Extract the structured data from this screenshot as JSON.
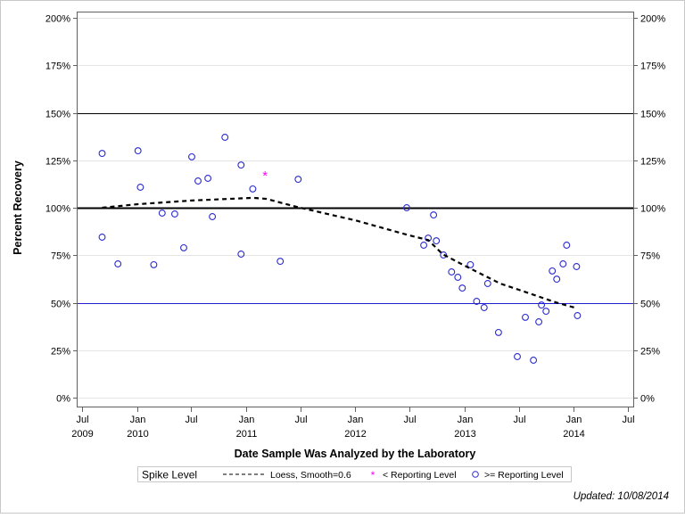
{
  "chart_data": {
    "type": "scatter",
    "xlabel": "Date Sample Was Analyzed by the Laboratory",
    "ylabel": "Percent Recovery",
    "ylim": [
      0,
      200
    ],
    "xlim": [
      "2009-07-01",
      "2014-07-01"
    ],
    "grid": true,
    "y_ticks": [
      "0%",
      "25%",
      "50%",
      "75%",
      "100%",
      "125%",
      "150%",
      "175%",
      "200%"
    ],
    "x_ticks": [
      {
        "date": "2009-07-01",
        "line1": "Jul",
        "line2": "2009"
      },
      {
        "date": "2010-01-01",
        "line1": "Jan",
        "line2": "2010"
      },
      {
        "date": "2010-07-01",
        "line1": "Jul",
        "line2": ""
      },
      {
        "date": "2011-01-01",
        "line1": "Jan",
        "line2": "2011"
      },
      {
        "date": "2011-07-01",
        "line1": "Jul",
        "line2": ""
      },
      {
        "date": "2012-01-01",
        "line1": "Jan",
        "line2": "2012"
      },
      {
        "date": "2012-07-01",
        "line1": "Jul",
        "line2": ""
      },
      {
        "date": "2013-01-01",
        "line1": "Jan",
        "line2": "2013"
      },
      {
        "date": "2013-07-01",
        "line1": "Jul",
        "line2": ""
      },
      {
        "date": "2014-01-01",
        "line1": "Jan",
        "line2": "2014"
      },
      {
        "date": "2014-07-01",
        "line1": "Jul",
        "line2": ""
      }
    ],
    "reference_lines": [
      {
        "value": 150,
        "color": "#000000",
        "style": "thin"
      },
      {
        "value": 100,
        "color": "#000000",
        "style": "thick"
      },
      {
        "value": 50,
        "color": "#2020d0",
        "style": "thin"
      }
    ],
    "series": [
      {
        "name": ">= Reporting Level",
        "marker": "circle",
        "color": "#2a2ad0",
        "points": [
          [
            "2009-09-06",
            128.6
          ],
          [
            "2009-09-06",
            84.5
          ],
          [
            "2009-10-29",
            70.4
          ],
          [
            "2010-01-04",
            130.0
          ],
          [
            "2010-01-12",
            110.8
          ],
          [
            "2010-02-26",
            70.0
          ],
          [
            "2010-03-26",
            97.2
          ],
          [
            "2010-05-07",
            96.7
          ],
          [
            "2010-06-06",
            78.9
          ],
          [
            "2010-07-03",
            126.8
          ],
          [
            "2010-07-24",
            114.1
          ],
          [
            "2010-08-26",
            115.5
          ],
          [
            "2010-09-10",
            95.3
          ],
          [
            "2010-10-22",
            137.1
          ],
          [
            "2010-12-15",
            122.5
          ],
          [
            "2010-12-15",
            75.6
          ],
          [
            "2011-01-23",
            109.9
          ],
          [
            "2011-04-25",
            71.8
          ],
          [
            "2011-06-24",
            115.0
          ],
          [
            "2012-06-21",
            100.0
          ],
          [
            "2012-08-17",
            80.3
          ],
          [
            "2012-09-01",
            84.0
          ],
          [
            "2012-09-19",
            96.2
          ],
          [
            "2012-09-28",
            82.6
          ],
          [
            "2012-10-22",
            75.1
          ],
          [
            "2012-11-18",
            66.2
          ],
          [
            "2012-12-09",
            63.4
          ],
          [
            "2012-12-24",
            57.7
          ],
          [
            "2013-01-20",
            70.0
          ],
          [
            "2013-02-10",
            50.7
          ],
          [
            "2013-03-07",
            47.4
          ],
          [
            "2013-03-19",
            60.1
          ],
          [
            "2013-04-24",
            34.3
          ],
          [
            "2013-06-26",
            21.6
          ],
          [
            "2013-07-23",
            42.3
          ],
          [
            "2013-08-19",
            19.7
          ],
          [
            "2013-09-06",
            39.9
          ],
          [
            "2013-09-15",
            48.8
          ],
          [
            "2013-09-30",
            45.5
          ],
          [
            "2013-10-21",
            66.7
          ],
          [
            "2013-11-05",
            62.4
          ],
          [
            "2013-11-26",
            70.4
          ],
          [
            "2013-12-08",
            80.3
          ],
          [
            "2014-01-10",
            69.0
          ],
          [
            "2014-01-13",
            43.2
          ]
        ]
      },
      {
        "name": "< Reporting Level",
        "marker": "star",
        "color": "#ff00ff",
        "points": [
          [
            "2011-03-05",
            117.4
          ]
        ]
      },
      {
        "name": "Loess, Smooth=0.6",
        "marker": "none",
        "color": "#000000",
        "line": "dashed",
        "points": [
          [
            "2009-09-06",
            100.0
          ],
          [
            "2010-01-04",
            101.9
          ],
          [
            "2010-07-03",
            103.8
          ],
          [
            "2011-01-23",
            105.2
          ],
          [
            "2011-03-08",
            104.7
          ],
          [
            "2011-07-01",
            100.0
          ],
          [
            "2012-01-01",
            93.4
          ],
          [
            "2012-07-01",
            85.4
          ],
          [
            "2012-09-01",
            83.0
          ],
          [
            "2012-10-19",
            75.6
          ],
          [
            "2013-01-01",
            69.5
          ],
          [
            "2013-05-01",
            60.0
          ],
          [
            "2013-07-01",
            56.8
          ],
          [
            "2013-11-01",
            50.2
          ],
          [
            "2014-01-13",
            47.0
          ]
        ]
      }
    ],
    "legend": {
      "placement": "bottom",
      "title": "Spike Level",
      "entries": [
        {
          "label": "Loess, Smooth=0.6",
          "symbol": "dashed-line"
        },
        {
          "label": "< Reporting Level",
          "symbol": "star"
        },
        {
          "label": ">= Reporting Level",
          "symbol": "circle"
        }
      ]
    }
  },
  "footer": {
    "updated": "Updated: 10/08/2014"
  }
}
